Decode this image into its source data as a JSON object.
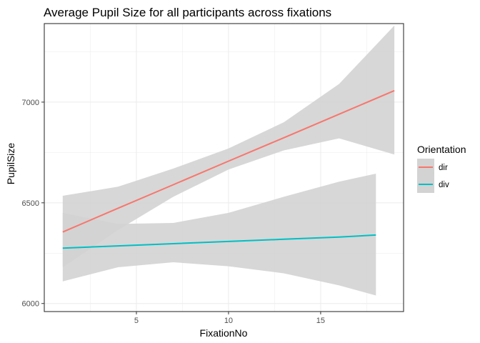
{
  "chart_data": {
    "type": "line",
    "title": "Average Pupil Size for all participants across fixations",
    "xlabel": "FixationNo",
    "ylabel": "PupilSize",
    "xlim": [
      0,
      19.5
    ],
    "ylim": [
      5960,
      7390
    ],
    "x_ticks": [
      5,
      10,
      15
    ],
    "y_ticks": [
      6000,
      6500,
      7000
    ],
    "grid": true,
    "theme": "black-and-white with light grey gridlines and panel border",
    "legend": {
      "title": "Orientation",
      "position": "right",
      "entries": [
        "dir",
        "div"
      ]
    },
    "band_color": "#d3d3d3",
    "series": [
      {
        "name": "dir",
        "color": "#F8766D",
        "x": [
          1,
          4,
          7,
          10,
          13,
          16,
          19
        ],
        "y": [
          6355,
          6473,
          6590,
          6707,
          6823,
          6940,
          7057
        ],
        "ci_lower": [
          6180,
          6365,
          6530,
          6665,
          6760,
          6820,
          6740
        ],
        "ci_upper": [
          6535,
          6580,
          6670,
          6770,
          6900,
          7090,
          7380
        ]
      },
      {
        "name": "div",
        "color": "#00BFC4",
        "x": [
          1,
          4,
          7,
          10,
          13,
          16,
          18
        ],
        "y": [
          6275,
          6286,
          6297,
          6308,
          6319,
          6330,
          6340
        ],
        "ci_lower": [
          6110,
          6180,
          6205,
          6185,
          6150,
          6090,
          6040
        ],
        "ci_upper": [
          6450,
          6395,
          6400,
          6450,
          6530,
          6605,
          6645
        ]
      }
    ]
  }
}
